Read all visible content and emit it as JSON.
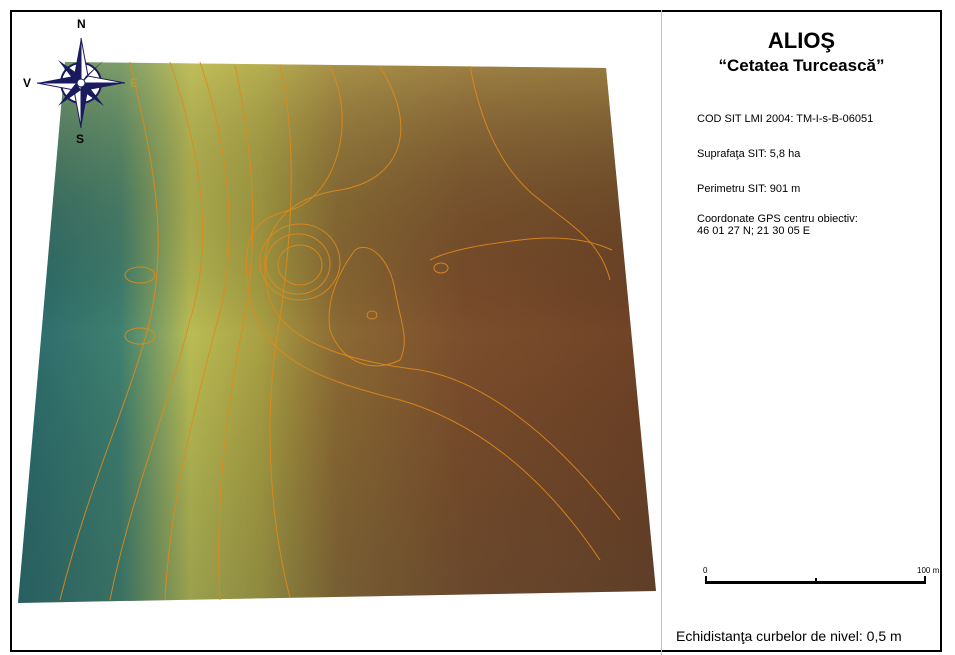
{
  "map": {
    "compass": {
      "north": "N",
      "south": "S",
      "east": "E",
      "west": "V"
    },
    "colors": {
      "lowland": "#2f6e6a",
      "slope": "#b8bb55",
      "plateau": "#7a4a2a",
      "contour": "#e08a1a"
    }
  },
  "legend": {
    "title": "ALIOŞ",
    "subtitle": "“Cetatea Turcească”",
    "cod_sit": "COD SIT LMI 2004: TM-I-s-B-06051",
    "suprafata": "Suprafaţa SIT:  5,8 ha",
    "perimetru": "Perimetru SIT:  901 m",
    "coordonate_label": "Coordonate GPS centru obiectiv:",
    "coordonate_value": "46 01 27 N; 21 30 05 E",
    "scale_start": "0",
    "scale_end": "100 m",
    "equidistance": "Echidistanţa curbelor de nivel: 0,5 m"
  }
}
